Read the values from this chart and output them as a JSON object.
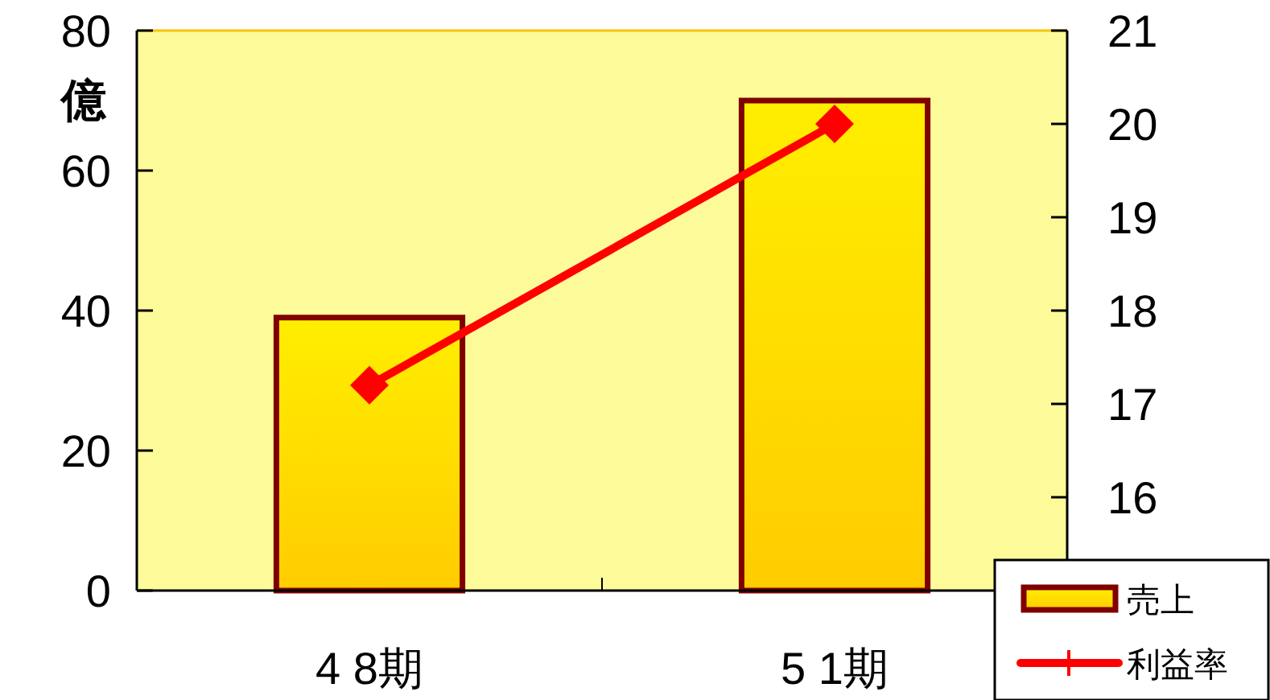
{
  "chart_data": {
    "type": "bar",
    "ylabel": "億",
    "categories": [
      "4 8期",
      "5 1期"
    ],
    "series": [
      {
        "name": "売上",
        "color": "#ffee00",
        "values": [
          39,
          70
        ]
      },
      {
        "name": "利益率",
        "type": "line",
        "axis": "y2",
        "color": "#ff0000",
        "values": [
          17.2,
          20.0
        ],
        "marker": "diamond"
      }
    ],
    "ylim": [
      0,
      80
    ],
    "yticks": [
      0,
      20,
      40,
      60,
      80
    ],
    "y2lim": [
      15,
      21
    ],
    "y2ticks": [
      16,
      17,
      18,
      19,
      20,
      21
    ],
    "grid": false,
    "legend": "bottom right"
  }
}
